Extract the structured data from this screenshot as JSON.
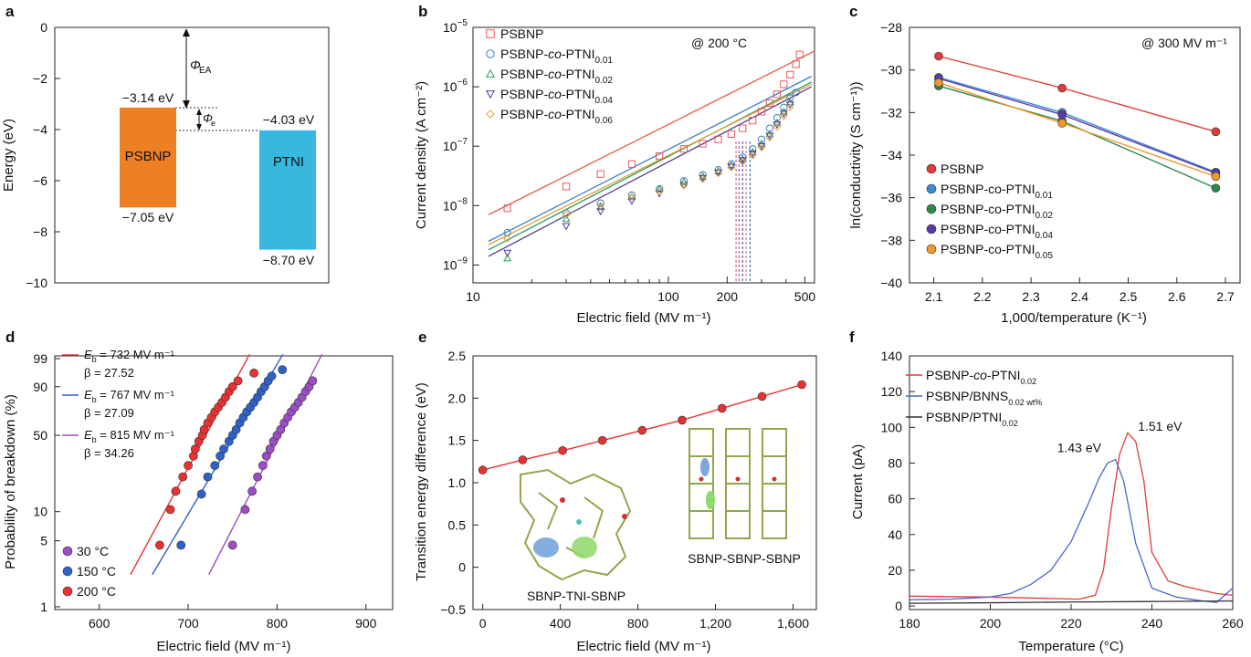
{
  "chart_data": [
    {
      "panel": "a",
      "type": "bar",
      "ylabel": "Energy (eV)",
      "yticks": [
        "0",
        "−2",
        "−4",
        "−6",
        "−8",
        "−10"
      ],
      "ylim": [
        -10,
        0
      ],
      "bars": [
        {
          "label": "PSBNP",
          "top": -3.14,
          "bottom": -7.05,
          "top_label": "−3.14 eV",
          "bottom_label": "−7.05 eV",
          "color": "#EE8024"
        },
        {
          "label": "PTNI",
          "top": -4.03,
          "bottom": -8.7,
          "top_label": "−4.03 eV",
          "bottom_label": "−8.70 eV",
          "color": "#37B9DF"
        }
      ],
      "annotations": [
        "Φ",
        "EA",
        "Φ",
        "e"
      ]
    },
    {
      "panel": "b",
      "type": "scatter",
      "xscale": "log",
      "yscale": "log",
      "xlabel": "Electric field (MV m⁻¹)",
      "ylabel": "Current density (A cm⁻²)",
      "xlim": [
        10,
        560
      ],
      "ylim": [
        5e-10,
        1e-05
      ],
      "xticks": [
        "10",
        "100",
        "200",
        "500"
      ],
      "annotation": "@ 200 °C",
      "series": [
        {
          "name": "PSBNP",
          "color": "#E85A5A",
          "marker": "square",
          "x": [
            15,
            30,
            45,
            65,
            90,
            120,
            150,
            180,
            210,
            240,
            270,
            300,
            330,
            360,
            390,
            420,
            450,
            470
          ],
          "y": [
            9e-09,
            2.1e-08,
            3.4e-08,
            5e-08,
            6.8e-08,
            9e-08,
            1.1e-07,
            1.3e-07,
            1.6e-07,
            2e-07,
            2.7e-07,
            3.8e-07,
            5.3e-07,
            7.5e-07,
            1.1e-06,
            1.6e-06,
            2.4e-06,
            3.5e-06
          ],
          "fit": {
            "x": [
              12,
              560
            ],
            "y": [
              7e-09,
              4e-06
            ]
          }
        },
        {
          "name": "PSBNP-co-PTNI0.01",
          "color": "#3D7CC9",
          "marker": "circle",
          "x": [
            15,
            30,
            45,
            65,
            90,
            120,
            150,
            180,
            210,
            240,
            270,
            300,
            330,
            360,
            390,
            420,
            450
          ],
          "y": [
            3.5e-09,
            7.5e-09,
            1.1e-08,
            1.5e-08,
            1.9e-08,
            2.6e-08,
            3.3e-08,
            4e-08,
            5e-08,
            6.5e-08,
            9e-08,
            1.3e-07,
            2e-07,
            3e-07,
            4.5e-07,
            6.5e-07,
            8e-07
          ],
          "fit": {
            "x": [
              12,
              540
            ],
            "y": [
              2.5e-09,
              1.5e-06
            ]
          }
        },
        {
          "name": "PSBNP-co-PTNI0.02",
          "color": "#2E9A5A",
          "marker": "triangle-up",
          "x": [
            15,
            30,
            45,
            65,
            90,
            120,
            150,
            180,
            210,
            240,
            270,
            300,
            330,
            360,
            390,
            420
          ],
          "y": [
            1.3e-09,
            6e-09,
            9.5e-09,
            1.4e-08,
            1.9e-08,
            2.5e-08,
            3.1e-08,
            3.8e-08,
            4.8e-08,
            6e-08,
            8e-08,
            1.1e-07,
            1.6e-07,
            2.5e-07,
            3.8e-07,
            5.5e-07
          ],
          "fit": {
            "x": [
              12,
              540
            ],
            "y": [
              1.8e-09,
              1.2e-06
            ]
          }
        },
        {
          "name": "PSBNP-co-PTNI0.04",
          "color": "#4A3D9C",
          "marker": "triangle-down",
          "x": [
            15,
            30,
            45,
            65,
            90,
            120,
            150,
            180,
            210,
            240,
            270,
            300,
            330,
            360,
            390,
            420
          ],
          "y": [
            1.6e-09,
            4.5e-09,
            8e-09,
            1.2e-08,
            1.6e-08,
            2.2e-08,
            2.9e-08,
            3.6e-08,
            4.5e-08,
            5.8e-08,
            7.5e-08,
            1e-07,
            1.5e-07,
            2.3e-07,
            3.5e-07,
            5e-07
          ],
          "fit": {
            "x": [
              12,
              540
            ],
            "y": [
              1.4e-09,
              1e-06
            ]
          }
        },
        {
          "name": "PSBNP-co-PTNI0.06",
          "color": "#E8A03A",
          "marker": "diamond",
          "x": [
            15,
            30,
            45,
            65,
            90,
            120,
            150,
            180,
            210,
            240,
            270,
            300,
            330,
            360,
            390,
            420
          ],
          "y": [
            2.8e-09,
            7e-09,
            1e-08,
            1.4e-08,
            1.7e-08,
            2.2e-08,
            2.8e-08,
            3.5e-08,
            4.4e-08,
            5.5e-08,
            7e-08,
            9.5e-08,
            1.4e-07,
            2.1e-07,
            3.2e-07,
            4.5e-07
          ],
          "fit": {
            "x": [
              12,
              540
            ],
            "y": [
              2.2e-09,
              1.1e-06
            ]
          }
        }
      ],
      "vlines": [
        {
          "x": 222,
          "color": "#E07090"
        },
        {
          "x": 230,
          "color": "#B060B0"
        },
        {
          "x": 240,
          "color": "#7050A0"
        },
        {
          "x": 250,
          "color": "#D080A0"
        },
        {
          "x": 262,
          "color": "#3080B0"
        }
      ]
    },
    {
      "panel": "c",
      "type": "line",
      "xlabel": "1,000/temperature (K⁻¹)",
      "ylabel": "ln(conductivity (S cm⁻¹))",
      "xlim": [
        2.05,
        2.73
      ],
      "ylim": [
        -40,
        -28
      ],
      "xticks": [
        "2.1",
        "2.2",
        "2.3",
        "2.4",
        "2.5",
        "2.6",
        "2.7"
      ],
      "yticks": [
        "−28",
        "−30",
        "−32",
        "−34",
        "−36",
        "−38",
        "−40"
      ],
      "annotation": "@ 300 MV m⁻¹",
      "x": [
        2.11,
        2.364,
        2.68
      ],
      "series": [
        {
          "name": "PSBNP",
          "color": "#E23A3A",
          "values": [
            -29.35,
            -30.85,
            -32.9
          ]
        },
        {
          "name": "PSBNP-co-PTNI0.01",
          "color": "#3D8AD6",
          "values": [
            -30.35,
            -32.0,
            -34.8
          ]
        },
        {
          "name": "PSBNP-co-PTNI0.02",
          "color": "#2B8A4A",
          "values": [
            -30.75,
            -32.4,
            -35.55
          ]
        },
        {
          "name": "PSBNP-co-PTNI0.04",
          "color": "#5A3AA8",
          "values": [
            -30.4,
            -32.1,
            -34.85
          ]
        },
        {
          "name": "PSBNP-co-PTNI0.05",
          "color": "#F0982A",
          "values": [
            -30.6,
            -32.5,
            -35.0
          ]
        }
      ]
    },
    {
      "panel": "d",
      "type": "scatter",
      "xlabel": "Electric field (MV m⁻¹)",
      "ylabel": "Probability of breakdown (%)",
      "xlim": [
        550,
        930
      ],
      "xticks": [
        "600",
        "700",
        "800",
        "900"
      ],
      "yticks": [
        "99",
        "90",
        "50",
        "10",
        "5",
        "1"
      ],
      "series": [
        {
          "name": "200 °C",
          "color": "#E83232",
          "fit_label_1": "E",
          "fit_label_2": "b",
          "fit_label_3": " = 732 MV m⁻¹",
          "beta": "β = 27.52",
          "x": [
            668,
            680,
            686,
            694,
            700,
            706,
            708,
            712,
            716,
            718,
            722,
            726,
            730,
            734,
            738,
            742,
            746,
            750,
            756,
            774
          ],
          "p": [
            4.5,
            10.5,
            16,
            22,
            28,
            34,
            39,
            45,
            50,
            55,
            61,
            66,
            71,
            75,
            79,
            83,
            87,
            90,
            93,
            96
          ]
        },
        {
          "name": "150 °C",
          "color": "#2F62C9",
          "fit_label_1": "E",
          "fit_label_2": "b",
          "fit_label_3": " = 767 MV m⁻¹",
          "beta": "β = 27.09",
          "x": [
            692,
            715,
            722,
            730,
            736,
            740,
            746,
            750,
            754,
            758,
            762,
            766,
            770,
            774,
            778,
            782,
            786,
            790,
            794,
            806
          ],
          "p": [
            4.5,
            15,
            22,
            28,
            34,
            39,
            45,
            50,
            55,
            61,
            66,
            71,
            75,
            79,
            83,
            87,
            90,
            93,
            95,
            97
          ]
        },
        {
          "name": "30 °C",
          "color": "#9B4EC4",
          "fit_label_1": "E",
          "fit_label_2": "b",
          "fit_label_3": " = 815 MV m⁻¹",
          "beta": "β = 34.26",
          "x": [
            750,
            764,
            772,
            778,
            784,
            788,
            792,
            796,
            800,
            804,
            808,
            812,
            816,
            820,
            824,
            828,
            832,
            836,
            840
          ],
          "p": [
            4.5,
            10.5,
            16,
            22,
            28,
            34,
            39,
            45,
            50,
            55,
            61,
            66,
            71,
            75,
            79,
            83,
            87,
            90,
            93
          ]
        }
      ],
      "legend_order": [
        "30 °C",
        "150 °C",
        "200 °C"
      ]
    },
    {
      "panel": "e",
      "type": "line",
      "xlabel": "Electric field (MV m⁻¹)",
      "ylabel": "Transition energy difference (eV)",
      "xlim": [
        -50,
        1720
      ],
      "ylim": [
        -0.5,
        2.5
      ],
      "xticks": [
        "0",
        "400",
        "800",
        "1,200",
        "1,600"
      ],
      "yticks": [
        "−0.5",
        "0",
        "0.5",
        "1.0",
        "1.5",
        "2.0",
        "2.5"
      ],
      "series": [
        {
          "color": "#E83232",
          "x": [
            0,
            206,
            412,
            617,
            822,
            1028,
            1234,
            1440,
            1645
          ],
          "values": [
            1.15,
            1.27,
            1.38,
            1.5,
            1.62,
            1.74,
            1.88,
            2.02,
            2.16
          ]
        }
      ],
      "inset_labels": [
        "SBNP-TNI-SBNP",
        "SBNP-SBNP-SBNP"
      ]
    },
    {
      "panel": "f",
      "type": "line",
      "xlabel": "Temperature (°C)",
      "ylabel": "Current (pA)",
      "xlim": [
        180,
        260
      ],
      "ylim": [
        -2,
        140
      ],
      "xticks": [
        "180",
        "200",
        "220",
        "240",
        "260"
      ],
      "yticks": [
        "0",
        "20",
        "40",
        "60",
        "80",
        "100",
        "120",
        "140"
      ],
      "series": [
        {
          "name": "PSBNP-co-PTNI0.02",
          "color": "#E23A3A",
          "x": [
            180,
            200,
            215,
            222,
            226,
            228,
            230,
            232,
            234,
            236,
            238,
            240,
            244,
            248,
            252,
            256,
            260
          ],
          "values": [
            5.5,
            5.0,
            4.2,
            3.8,
            6,
            20,
            55,
            85,
            97,
            92,
            70,
            30,
            14,
            11,
            9,
            7,
            6
          ]
        },
        {
          "name": "PSBNP/BNNS0.02wt%",
          "color": "#4A66C8",
          "x": [
            180,
            190,
            200,
            205,
            210,
            215,
            220,
            224,
            227,
            229,
            231,
            233,
            236,
            240,
            246,
            252,
            256,
            260
          ],
          "values": [
            3.5,
            3.8,
            5,
            7,
            12,
            20,
            36,
            56,
            72,
            80,
            82,
            70,
            35,
            10,
            5,
            3,
            2,
            10
          ]
        },
        {
          "name": "PSBNP/PTNI0.02",
          "color": "#333333",
          "x": [
            180,
            200,
            220,
            240,
            260
          ],
          "values": [
            1.5,
            1.8,
            2.2,
            2.5,
            2.8
          ]
        }
      ],
      "annotations": [
        {
          "text": "1.43 eV",
          "x": 222,
          "y": 86
        },
        {
          "text": "1.51 eV",
          "x": 242,
          "y": 98
        }
      ]
    }
  ]
}
